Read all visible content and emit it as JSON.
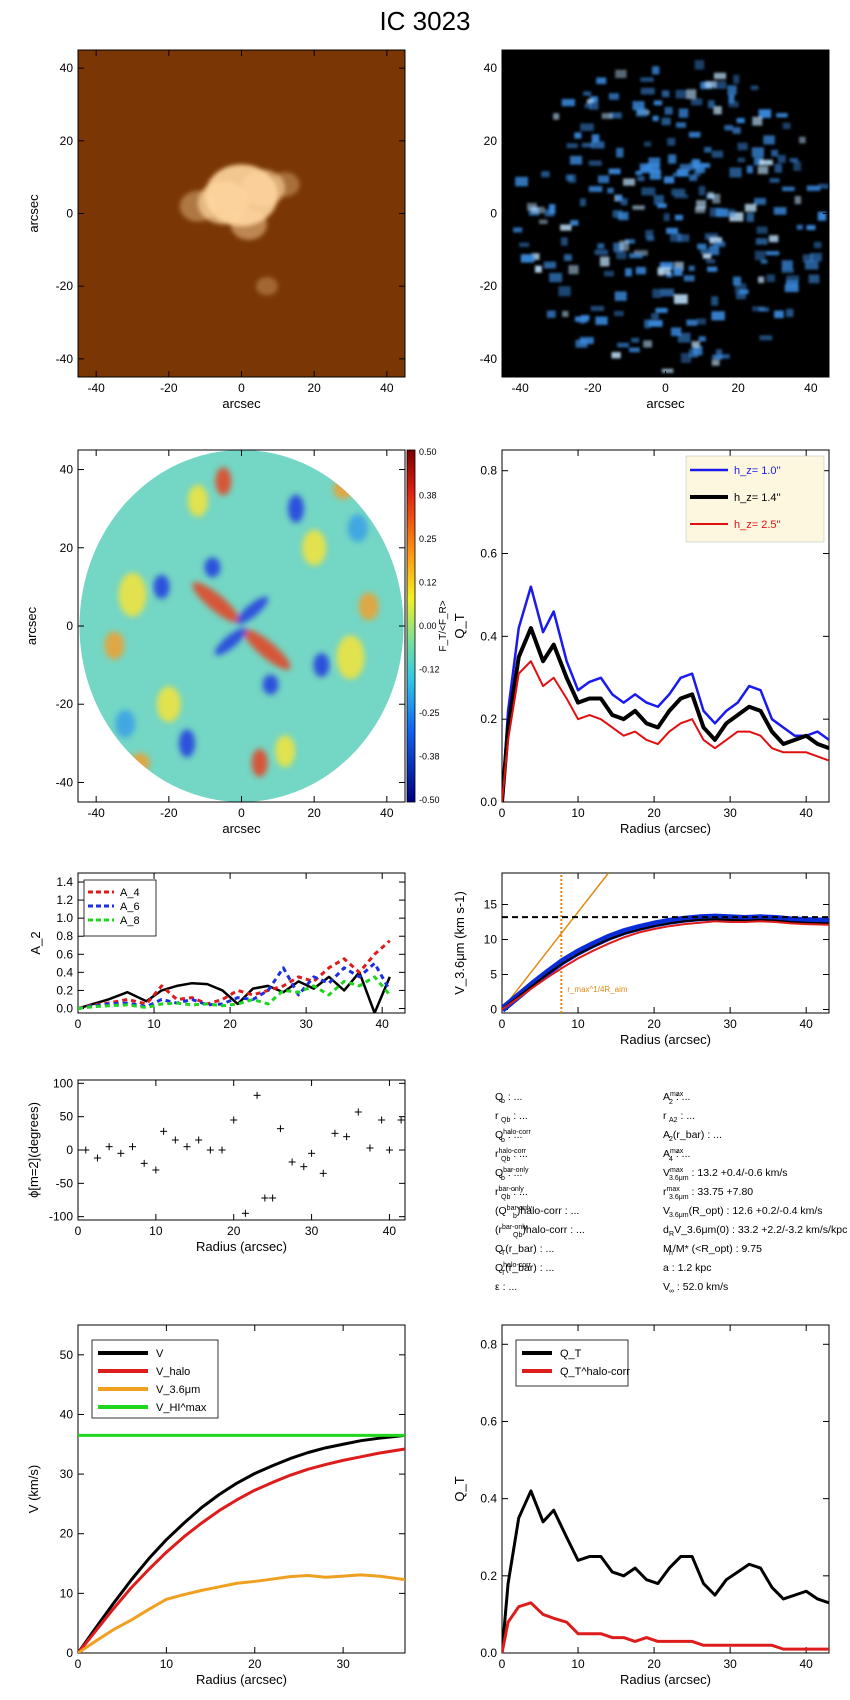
{
  "title": "IC 3023",
  "chart_data": [
    {
      "id": "img1",
      "type": "heatmap",
      "xlabel": "arcsec",
      "ylabel": "arcsec",
      "xlim": [
        -45,
        45
      ],
      "ylim": [
        -45,
        45
      ],
      "xticks": [
        -40,
        -20,
        0,
        20,
        40
      ],
      "yticks": [
        -40,
        -20,
        0,
        20,
        40
      ],
      "colors": {
        "background": "#7a3705",
        "emission": "#ffd6a0"
      },
      "blobs": [
        {
          "x": 0,
          "y": 5,
          "size": 10,
          "level": 0.9
        },
        {
          "x": -5,
          "y": 3,
          "size": 7,
          "level": 0.7
        },
        {
          "x": 6,
          "y": 7,
          "size": 6,
          "level": 0.6
        },
        {
          "x": 2,
          "y": -3,
          "size": 5,
          "level": 0.5
        },
        {
          "x": -12,
          "y": 2,
          "size": 5,
          "level": 0.4
        },
        {
          "x": 12,
          "y": 8,
          "size": 4,
          "level": 0.35
        },
        {
          "x": 7,
          "y": -20,
          "size": 3,
          "level": 0.3
        }
      ]
    },
    {
      "id": "img2",
      "type": "heatmap",
      "xlabel": "arcsec",
      "ylabel": "",
      "xlim": [
        -45,
        45
      ],
      "ylim": [
        -45,
        45
      ],
      "xticks": [
        -40,
        -20,
        0,
        20,
        40
      ],
      "yticks": [
        -40,
        -20,
        0,
        20,
        40
      ],
      "colors": {
        "background": "#000000",
        "emission": "#3a8be0",
        "bright": "#c0e4ff"
      },
      "disk_radius": 43
    },
    {
      "id": "ratio",
      "type": "heatmap",
      "xlabel": "arcsec",
      "ylabel": "arcsec",
      "colorbar_label": "F_T/<F_R>",
      "xlim": [
        -45,
        45
      ],
      "ylim": [
        -45,
        45
      ],
      "xticks": [
        -40,
        -20,
        0,
        20,
        40
      ],
      "yticks": [
        -40,
        -20,
        0,
        20,
        40
      ],
      "colorbar_ticks": [
        "0.50",
        "0.38",
        "0.25",
        "0.12",
        "0.00",
        "-0.12",
        "-0.25",
        "-0.38",
        "-0.50"
      ],
      "disk_radius": 44,
      "colors": {
        "base": "#74d6c4",
        "pos": "#e8401c",
        "neg": "#1d38e0"
      }
    },
    {
      "id": "qt",
      "type": "line",
      "xlabel": "Radius (arcsec)",
      "ylabel": "Q_T",
      "xlim": [
        0,
        43
      ],
      "ylim": [
        0,
        0.85
      ],
      "xticks": [
        0,
        10,
        20,
        30,
        40
      ],
      "yticks": [
        0.0,
        0.2,
        0.4,
        0.6,
        0.8
      ],
      "x": [
        0,
        0.8,
        2.2,
        3.8,
        5.4,
        6.8,
        8.5,
        10,
        11.5,
        13,
        14.5,
        16,
        17.5,
        19,
        20.5,
        22,
        23.5,
        25,
        26.5,
        28,
        29.5,
        31,
        32.5,
        34,
        35.5,
        37,
        38.5,
        40,
        41.5,
        43
      ],
      "series": [
        {
          "name": "h_z=  1.0''",
          "color": "#1a1aee",
          "width": 2.5,
          "values": [
            0.0,
            0.22,
            0.42,
            0.52,
            0.41,
            0.46,
            0.34,
            0.27,
            0.29,
            0.3,
            0.26,
            0.24,
            0.26,
            0.24,
            0.23,
            0.26,
            0.3,
            0.31,
            0.22,
            0.19,
            0.22,
            0.24,
            0.28,
            0.27,
            0.2,
            0.18,
            0.16,
            0.16,
            0.17,
            0.15
          ]
        },
        {
          "name": "h_z=  1.4''",
          "color": "#000000",
          "width": 4,
          "values": [
            0.0,
            0.18,
            0.35,
            0.42,
            0.34,
            0.38,
            0.3,
            0.24,
            0.25,
            0.25,
            0.21,
            0.2,
            0.22,
            0.19,
            0.18,
            0.22,
            0.25,
            0.26,
            0.18,
            0.15,
            0.19,
            0.21,
            0.23,
            0.22,
            0.17,
            0.14,
            0.15,
            0.16,
            0.14,
            0.13
          ]
        },
        {
          "name": "h_z=  2.5''",
          "color": "#e01010",
          "width": 2,
          "values": [
            0.0,
            0.15,
            0.31,
            0.34,
            0.28,
            0.3,
            0.25,
            0.2,
            0.21,
            0.2,
            0.18,
            0.16,
            0.17,
            0.15,
            0.14,
            0.17,
            0.19,
            0.2,
            0.15,
            0.13,
            0.15,
            0.17,
            0.17,
            0.16,
            0.13,
            0.12,
            0.12,
            0.12,
            0.11,
            0.1
          ]
        }
      ],
      "legend": "top-right",
      "legend_bg": "#fdf7df"
    },
    {
      "id": "amp",
      "type": "line",
      "xlabel": "",
      "ylabel": "A_2",
      "xlim": [
        0,
        43
      ],
      "ylim": [
        -0.05,
        1.5
      ],
      "xticks": [
        0,
        10,
        20,
        30,
        40
      ],
      "yticks": [
        0.0,
        0.2,
        0.4,
        0.6,
        0.8,
        1.0,
        1.2,
        1.4
      ],
      "x": [
        0,
        2,
        4,
        6.5,
        9,
        11,
        13,
        15,
        17,
        19,
        21,
        23,
        25,
        27,
        29,
        31,
        33,
        35,
        37,
        39,
        41
      ],
      "series": [
        {
          "name": "",
          "color": "#000000",
          "width": 2.5,
          "dash": "",
          "values": [
            0.0,
            0.05,
            0.1,
            0.18,
            0.08,
            0.2,
            0.25,
            0.28,
            0.27,
            0.2,
            0.05,
            0.22,
            0.25,
            0.18,
            0.3,
            0.22,
            0.35,
            0.2,
            0.4,
            -0.05,
            0.35
          ]
        },
        {
          "name": "A_4",
          "color": "#dd1c1c",
          "width": 3,
          "dash": "5,4",
          "values": [
            0.0,
            0.04,
            0.06,
            0.1,
            0.05,
            0.25,
            0.1,
            0.12,
            0.05,
            0.1,
            0.2,
            0.15,
            0.2,
            0.25,
            0.35,
            0.3,
            0.45,
            0.55,
            0.4,
            0.6,
            0.75
          ]
        },
        {
          "name": "A_6",
          "color": "#1a2fe0",
          "width": 3,
          "dash": "5,4",
          "values": [
            0.0,
            0.03,
            0.05,
            0.06,
            0.02,
            0.1,
            0.06,
            0.1,
            0.04,
            0.05,
            0.12,
            0.1,
            0.2,
            0.45,
            0.15,
            0.35,
            0.28,
            0.45,
            0.35,
            0.5,
            0.2
          ]
        },
        {
          "name": "A_8",
          "color": "#1fd61f",
          "width": 3,
          "dash": "5,4",
          "values": [
            0.0,
            0.02,
            0.03,
            0.04,
            0.01,
            0.05,
            0.06,
            0.04,
            0.05,
            0.03,
            0.05,
            0.1,
            0.05,
            0.2,
            0.18,
            0.25,
            0.15,
            0.3,
            0.25,
            0.35,
            0.15
          ]
        }
      ],
      "legend": "top-left"
    },
    {
      "id": "vrot",
      "type": "line",
      "xlabel": "Radius (arcsec)",
      "ylabel": "V_3.6μm (km s-1)",
      "xlim": [
        0,
        43
      ],
      "ylim": [
        -0.5,
        19.5
      ],
      "xticks": [
        0,
        10,
        20,
        30,
        40
      ],
      "yticks": [
        0,
        5,
        10,
        15
      ],
      "x": [
        0,
        2,
        4,
        6,
        8,
        10,
        12,
        14,
        16,
        18,
        20,
        22,
        24,
        26,
        28,
        30,
        32,
        34,
        36,
        38,
        40,
        43
      ],
      "series": [
        {
          "name": "",
          "color": "#0a2cd6",
          "width": 7,
          "values": [
            0,
            1.8,
            3.6,
            5.3,
            6.9,
            8.2,
            9.3,
            10.3,
            11.1,
            11.7,
            12.2,
            12.6,
            12.9,
            13.1,
            13.2,
            13.1,
            13.0,
            13.1,
            13.0,
            12.8,
            12.7,
            12.6
          ]
        },
        {
          "name": "",
          "color": "#000000",
          "width": 2,
          "values": [
            0,
            1.7,
            3.4,
            5.1,
            6.6,
            7.9,
            9.0,
            10.0,
            10.8,
            11.4,
            11.9,
            12.3,
            12.6,
            12.8,
            12.9,
            12.8,
            12.7,
            12.8,
            12.7,
            12.5,
            12.4,
            12.3
          ]
        },
        {
          "name": "",
          "color": "#dd1c1c",
          "width": 2,
          "values": [
            0,
            1.5,
            3.1,
            4.6,
            6.0,
            7.3,
            8.4,
            9.4,
            10.3,
            11.0,
            11.5,
            11.9,
            12.2,
            12.4,
            12.6,
            12.5,
            12.5,
            12.6,
            12.5,
            12.3,
            12.2,
            12.1
          ]
        }
      ],
      "hline": 13.2,
      "slope_line": {
        "x": [
          0,
          14
        ],
        "y": [
          0,
          19.5
        ],
        "color": "#e08a10"
      },
      "vline": {
        "x": 7.8,
        "color": "#e08a10",
        "label": "r_max^1/4R_aim"
      }
    },
    {
      "id": "phase",
      "type": "scatter",
      "xlabel": "Radius (arcsec)",
      "ylabel": "ϕ[m=2](degrees)",
      "xlim": [
        0,
        42
      ],
      "ylim": [
        -105,
        105
      ],
      "xticks": [
        0,
        10,
        20,
        30,
        40
      ],
      "yticks": [
        -100,
        -50,
        0,
        50,
        100
      ],
      "x": [
        1,
        2.5,
        4,
        5.5,
        7,
        8.5,
        10,
        11,
        12.5,
        14,
        15.5,
        17,
        18.5,
        20,
        21.5,
        23,
        24,
        25,
        26,
        27.5,
        29,
        30,
        31.5,
        33,
        34.5,
        36,
        37.5,
        39,
        40,
        41.5
      ],
      "values": [
        0,
        -12,
        5,
        -5,
        5,
        -20,
        -30,
        28,
        15,
        5,
        15,
        0,
        0,
        45,
        -95,
        82,
        -72,
        -72,
        32,
        -18,
        -25,
        -5,
        -35,
        25,
        20,
        57,
        3,
        45,
        0,
        45
      ]
    },
    {
      "id": "vmod",
      "type": "line",
      "xlabel": "Radius (arcsec)",
      "ylabel": "V (km/s)",
      "xlim": [
        0,
        37
      ],
      "ylim": [
        0,
        55
      ],
      "xticks": [
        0,
        10,
        20,
        30
      ],
      "yticks": [
        0,
        10,
        20,
        30,
        40,
        50
      ],
      "x": [
        0,
        2,
        4,
        6,
        8,
        10,
        12,
        14,
        16,
        18,
        20,
        22,
        24,
        26,
        28,
        30,
        32,
        34,
        37
      ],
      "series": [
        {
          "name": "V",
          "color": "#000000",
          "width": 3,
          "values": [
            0,
            4.2,
            8.3,
            12.2,
            15.8,
            19.0,
            21.8,
            24.4,
            26.6,
            28.5,
            30.1,
            31.4,
            32.6,
            33.6,
            34.4,
            35.0,
            35.6,
            36.0,
            36.5
          ]
        },
        {
          "name": "V_halo",
          "color": "#dd1c1c",
          "width": 3,
          "values": [
            0,
            3.7,
            7.4,
            10.9,
            14.0,
            16.9,
            19.5,
            21.8,
            23.9,
            25.7,
            27.3,
            28.6,
            29.8,
            30.8,
            31.6,
            32.3,
            32.9,
            33.5,
            34.2
          ]
        },
        {
          "name": "V_3.6μm",
          "color": "#f0a020",
          "width": 3,
          "values": [
            0,
            2.0,
            3.9,
            5.5,
            7.3,
            9.0,
            9.8,
            10.5,
            11.1,
            11.7,
            12.0,
            12.4,
            12.8,
            13.0,
            12.7,
            12.9,
            13.1,
            12.9,
            12.3
          ]
        },
        {
          "name": "V_HI^max",
          "color": "#1ed81e",
          "width": 3,
          "values": [
            36.5,
            36.5,
            36.5,
            36.5,
            36.5,
            36.5,
            36.5,
            36.5,
            36.5,
            36.5,
            36.5,
            36.5,
            36.5,
            36.5,
            36.5,
            36.5,
            36.5,
            36.5,
            36.5
          ]
        }
      ],
      "legend": "top-left"
    },
    {
      "id": "qtcorr",
      "type": "line",
      "xlabel": "Radius (arcsec)",
      "ylabel": "Q_T",
      "xlim": [
        0,
        43
      ],
      "ylim": [
        0,
        0.85
      ],
      "xticks": [
        0,
        10,
        20,
        30,
        40
      ],
      "yticks": [
        0.0,
        0.2,
        0.4,
        0.6,
        0.8
      ],
      "x": [
        0,
        0.8,
        2.2,
        3.8,
        5.4,
        6.8,
        8.5,
        10,
        11.5,
        13,
        14.5,
        16,
        17.5,
        19,
        20.5,
        22,
        23.5,
        25,
        26.5,
        28,
        29.5,
        31,
        32.5,
        34,
        35.5,
        37,
        38.5,
        40,
        41.5,
        43
      ],
      "series": [
        {
          "name": "Q_T",
          "color": "#000000",
          "width": 3,
          "values": [
            0.0,
            0.18,
            0.35,
            0.42,
            0.34,
            0.37,
            0.3,
            0.24,
            0.25,
            0.25,
            0.21,
            0.2,
            0.22,
            0.19,
            0.18,
            0.22,
            0.25,
            0.25,
            0.18,
            0.15,
            0.19,
            0.21,
            0.23,
            0.22,
            0.17,
            0.14,
            0.15,
            0.16,
            0.14,
            0.13
          ]
        },
        {
          "name": "Q_T^halo-corr",
          "color": "#dd1c1c",
          "width": 3,
          "values": [
            0.0,
            0.08,
            0.12,
            0.13,
            0.1,
            0.09,
            0.08,
            0.05,
            0.05,
            0.05,
            0.04,
            0.04,
            0.03,
            0.04,
            0.03,
            0.03,
            0.03,
            0.03,
            0.02,
            0.02,
            0.02,
            0.02,
            0.02,
            0.02,
            0.02,
            0.01,
            0.01,
            0.01,
            0.01,
            0.01
          ]
        }
      ],
      "legend": "top-left"
    }
  ],
  "parameters": {
    "left": [
      {
        "name": "Q",
        "sub": "b",
        "sup": "",
        "value": " : ..."
      },
      {
        "name": "r",
        "sub": "Qb",
        "sup": "",
        "value": " : ..."
      },
      {
        "name": "Q",
        "sub": "b",
        "sup": "halo-corr",
        "value": " : ..."
      },
      {
        "name": "r",
        "sub": "Qb",
        "sup": "halo-corr",
        "value": " : ..."
      },
      {
        "name": "Q",
        "sub": "b",
        "sup": "bar-only",
        "value": " : ..."
      },
      {
        "name": "r",
        "sub": "Qb",
        "sup": "bar-only",
        "value": " : ..."
      },
      {
        "name": "(Q",
        "sub": "b",
        "sup": "bar-only",
        "value": ")halo-corr : ..."
      },
      {
        "name": "(r",
        "sub": "Qb",
        "sup": "bar-only",
        "value": ")halo-corr : ..."
      },
      {
        "name": "Q",
        "sub": "T",
        "sup": "",
        "value": "(r_bar) : ..."
      },
      {
        "name": "Q",
        "sub": "T",
        "sup": "halo-corr",
        "value": "(r_bar) : ..."
      },
      {
        "name": "ε",
        "sub": "",
        "sup": "",
        "value": " : ..."
      }
    ],
    "right": [
      {
        "name": "A",
        "sub": "2",
        "sup": "max",
        "value": " : ..."
      },
      {
        "name": "r",
        "sub": "A2",
        "sup": "",
        "value": " : ..."
      },
      {
        "name": "A",
        "sub": "2",
        "sup": "",
        "value": "(r_bar) : ..."
      },
      {
        "name": "A",
        "sub": "4",
        "sup": "max",
        "value": " : ..."
      },
      {
        "name": "V",
        "sub": "3.6μm",
        "sup": "max",
        "value": " :  13.2 +0.4/-0.6 km/s"
      },
      {
        "name": "r",
        "sub": "3.6μm",
        "sup": "max",
        "value": " :  33.75 +7.80"
      },
      {
        "name": "V",
        "sub": "3.6μm",
        "sup": "",
        "value": "(R_opt) :  12.6 +0.2/-0.4 km/s"
      },
      {
        "name": "d",
        "sub": "R",
        "sup": "",
        "value": "V_3.6μm(0) :  33.2 +2.2/-3.2 km/s/kpc"
      },
      {
        "name": "M",
        "sub": "h",
        "sup": "",
        "value": "/M* (<R_opt) :  9.75"
      },
      {
        "name": "a",
        "sub": "",
        "sup": "",
        "value": " :   1.2 kpc"
      },
      {
        "name": "V",
        "sub": "∞",
        "sup": "",
        "value": " :  52.0 km/s"
      }
    ]
  }
}
